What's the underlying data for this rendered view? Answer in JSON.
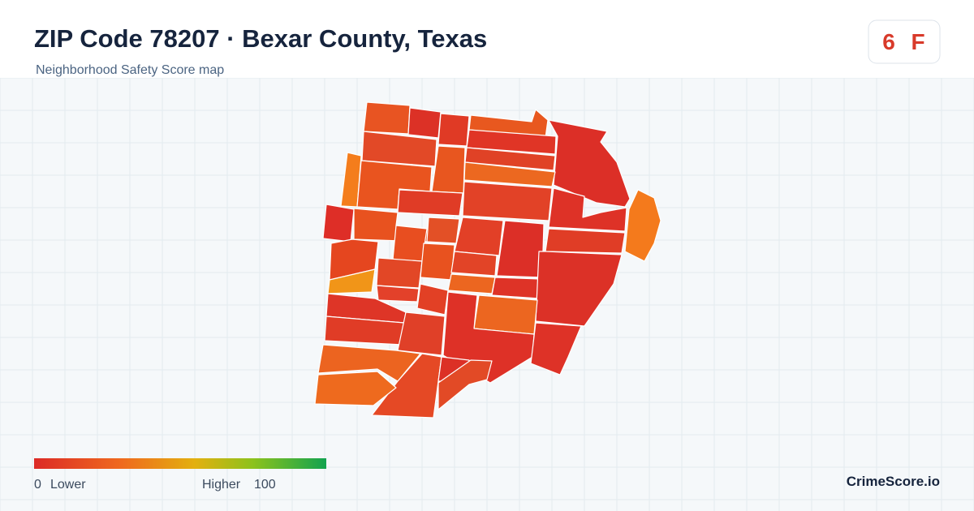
{
  "header": {
    "title": "ZIP Code 78207 · Bexar County, Texas",
    "subtitle": "Neighborhood Safety Score map"
  },
  "score": {
    "value": 6,
    "grade": "F"
  },
  "legend": {
    "min": 0,
    "min_label": "Lower",
    "max_label": "Higher",
    "max": 100
  },
  "brand": "CrimeScore.io"
}
